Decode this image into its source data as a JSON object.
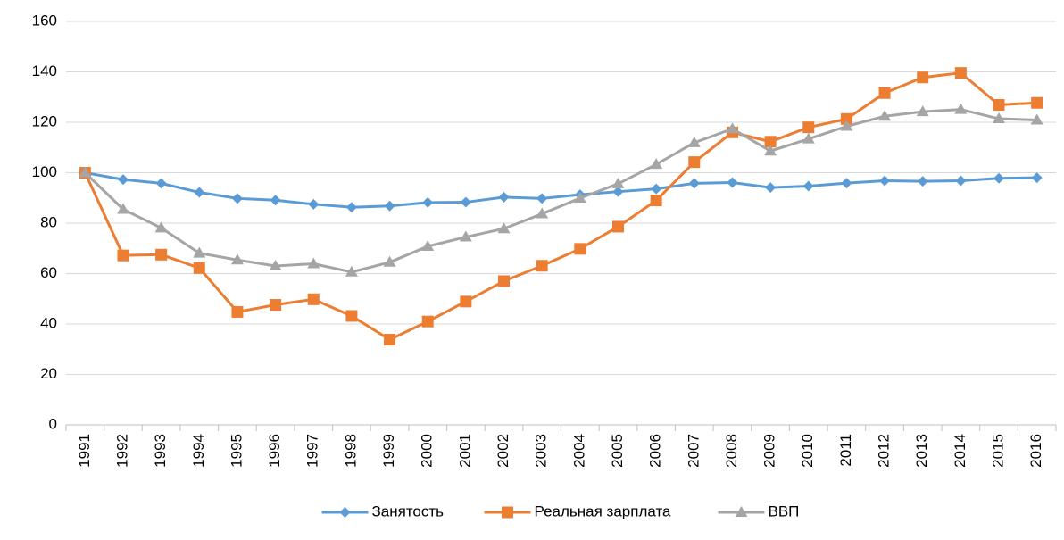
{
  "chart_data": {
    "type": "line",
    "categories": [
      "1991",
      "1992",
      "1993",
      "1994",
      "1995",
      "1996",
      "1997",
      "1998",
      "1999",
      "2000",
      "2001",
      "2002",
      "2003",
      "2004",
      "2005",
      "2006",
      "2007",
      "2008",
      "2009",
      "2010",
      "2011",
      "2012",
      "2013",
      "2014",
      "2015",
      "2016"
    ],
    "series": [
      {
        "name": "Занятость",
        "color": "#5b9bd5",
        "marker": "diamond",
        "values": [
          100,
          97.3,
          95.8,
          92.2,
          89.8,
          89.1,
          87.5,
          86.3,
          86.8,
          88.2,
          88.3,
          90.3,
          89.8,
          91.3,
          92.5,
          93.6,
          95.8,
          96.1,
          94.1,
          94.7,
          95.9,
          96.8,
          96.6,
          96.8,
          97.8,
          98.0
        ]
      },
      {
        "name": "Реальная зарплата",
        "color": "#ed7d31",
        "marker": "square",
        "values": [
          100,
          67.2,
          67.5,
          62.2,
          44.8,
          47.6,
          49.8,
          43.2,
          33.8,
          41.0,
          48.9,
          57.0,
          63.1,
          69.8,
          78.6,
          89.0,
          104.2,
          116.0,
          112.3,
          118.0,
          121.3,
          131.6,
          137.8,
          139.6,
          126.9,
          127.7
        ]
      },
      {
        "name": "ВВП",
        "color": "#a5a5a5",
        "marker": "triangle",
        "values": [
          100,
          85.5,
          78.1,
          68.1,
          65.4,
          63.0,
          63.9,
          60.6,
          64.5,
          70.8,
          74.5,
          77.8,
          83.7,
          89.9,
          95.6,
          103.3,
          111.9,
          117.4,
          108.6,
          113.4,
          118.4,
          122.4,
          124.2,
          125.1,
          121.4,
          120.9
        ]
      }
    ],
    "ylim": [
      0,
      160
    ],
    "yticks": [
      0,
      20,
      40,
      60,
      80,
      100,
      120,
      140,
      160
    ],
    "grid": true,
    "legend": "bottom"
  }
}
